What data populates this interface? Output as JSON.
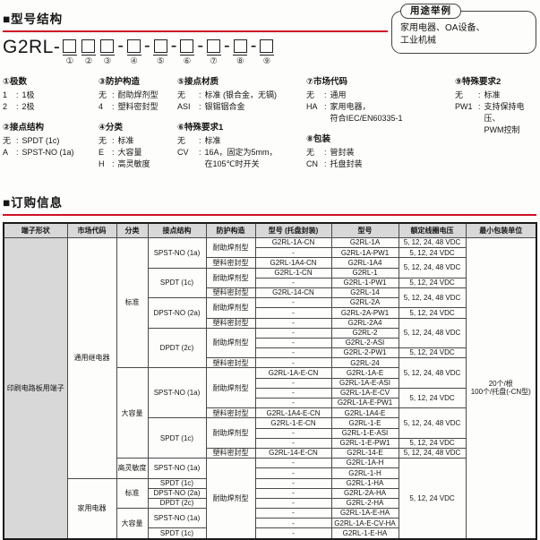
{
  "model_structure": {
    "heading": "■型号结构",
    "model_prefix": "G2RL-",
    "digit_separator": "-",
    "digits": [
      "①",
      "②",
      "③",
      "④",
      "⑤",
      "⑥",
      "⑦",
      "⑧",
      "⑨"
    ],
    "usage_box": {
      "title": "用途举例",
      "text": "家用电器、OA设备、\n工业机械"
    },
    "spec_columns": [
      [
        {
          "title": "①极数",
          "items": [
            [
              "1",
              "1极"
            ],
            [
              "2",
              "2极"
            ]
          ]
        },
        {
          "title": "②接点结构",
          "items": [
            [
              "无",
              "SPDT (1c)"
            ],
            [
              "A",
              "SPST-NO (1a)"
            ]
          ]
        }
      ],
      [
        {
          "title": "③防护构造",
          "items": [
            [
              "无",
              "耐助焊剂型"
            ],
            [
              "4",
              "塑料密封型"
            ]
          ]
        },
        {
          "title": "④分类",
          "items": [
            [
              "无",
              "标准"
            ],
            [
              "E",
              "大容量"
            ],
            [
              "H",
              "高灵敏度"
            ]
          ]
        }
      ],
      [
        {
          "title": "⑤接点材质",
          "items": [
            [
              "无",
              "标准 (银合金，无镉)"
            ],
            [
              "ASI",
              "银锡铟合金"
            ]
          ]
        },
        {
          "title": "⑥特殊要求1",
          "items": [
            [
              "无",
              "标准"
            ],
            [
              "CV",
              "16A，固定为5mm，\n在105℃时开关"
            ]
          ]
        }
      ],
      [
        {
          "title": "⑦市场代码",
          "items": [
            [
              "无",
              "通用"
            ],
            [
              "HA",
              "家用电器，\n符合IEC/EN60335-1"
            ]
          ]
        },
        {
          "title": "⑧包装",
          "items": [
            [
              "无",
              "管封装"
            ],
            [
              "CN",
              "托盘封装"
            ]
          ]
        }
      ],
      [
        {
          "title": "⑨特殊要求2",
          "items": [
            [
              "无",
              "标准"
            ],
            [
              "PW1",
              "支持保持电压、\nPWM控制"
            ]
          ]
        }
      ]
    ]
  },
  "ordering": {
    "heading": "■订购信息",
    "table": {
      "headers": [
        "端子形状",
        "市场代码",
        "分类",
        "接点结构",
        "防护构造",
        "型号 (托盘封装)",
        "型号",
        "额定线圈电压",
        "最小包装单位"
      ],
      "rows": [
        [
          {
            "t": "印刷电路板用端子",
            "rs": 30,
            "g": true
          },
          {
            "t": "通用继电器",
            "rs": 24
          },
          {
            "t": "标准",
            "rs": 13
          },
          {
            "t": "SPST-NO (1a)",
            "rs": 3
          },
          {
            "t": "耐助焊剂型",
            "rs": 2
          },
          {
            "t": "G2RL-1A-CN"
          },
          {
            "t": "G2RL-1A"
          },
          {
            "t": "5, 12, 24, 48 VDC"
          },
          {
            "t": "20个/根\n100个/托盘(-CN型)",
            "rs": 30
          }
        ],
        [
          {
            "t": "-"
          },
          {
            "t": "G2RL-1A-PW1"
          },
          {
            "t": "5, 12, 24 VDC"
          }
        ],
        [
          {
            "t": "塑料密封型"
          },
          {
            "t": "G2RL-1A4-CN"
          },
          {
            "t": "G2RL-1A4"
          },
          {
            "t": "5, 12, 24, 48 VDC",
            "rs": 2
          }
        ],
        [
          {
            "t": "SPDT (1c)",
            "rs": 3
          },
          {
            "t": "耐助焊剂型",
            "rs": 2
          },
          {
            "t": "G2RL-1-CN"
          },
          {
            "t": "G2RL-1"
          }
        ],
        [
          {
            "t": "-"
          },
          {
            "t": "G2RL-1-PW1"
          },
          {
            "t": "5, 12, 24 VDC"
          }
        ],
        [
          {
            "t": "塑料密封型"
          },
          {
            "t": "G2RL-14-CN"
          },
          {
            "t": "G2RL-14"
          },
          {
            "t": "5, 12, 24, 48 VDC",
            "rs": 2
          }
        ],
        [
          {
            "t": "DPST-NO (2a)",
            "rs": 3
          },
          {
            "t": "耐助焊剂型",
            "rs": 2
          },
          {
            "t": "-"
          },
          {
            "t": "G2RL-2A"
          }
        ],
        [
          {
            "t": "-"
          },
          {
            "t": "G2RL-2A-PW1"
          },
          {
            "t": "5, 12, 24 VDC"
          }
        ],
        [
          {
            "t": "塑料密封型"
          },
          {
            "t": "-"
          },
          {
            "t": "G2RL-2A4"
          },
          {
            "t": "5, 12, 24, 48 VDC",
            "rs": 3
          }
        ],
        [
          {
            "t": "DPDT (2c)",
            "rs": 4
          },
          {
            "t": "耐助焊剂型",
            "rs": 3
          },
          {
            "t": "-"
          },
          {
            "t": "G2RL-2"
          }
        ],
        [
          {
            "t": "-"
          },
          {
            "t": "G2RL-2-ASI"
          }
        ],
        [
          {
            "t": "-"
          },
          {
            "t": "G2RL-2-PW1"
          },
          {
            "t": "5, 12, 24 VDC"
          }
        ],
        [
          {
            "t": "塑料密封型"
          },
          {
            "t": "-"
          },
          {
            "t": "G2RL-24"
          },
          {
            "t": "5, 12, 24, 48 VDC",
            "rs": 3
          }
        ],
        [
          {
            "t": "大容量",
            "rs": 9
          },
          {
            "t": "SPST-NO (1a)",
            "rs": 5
          },
          {
            "t": "耐助焊剂型",
            "rs": 4
          },
          {
            "t": "G2RL-1A-E-CN"
          },
          {
            "t": "G2RL-1A-E"
          }
        ],
        [
          {
            "t": "-"
          },
          {
            "t": "G2RL-1A-E-ASI"
          }
        ],
        [
          {
            "t": "-"
          },
          {
            "t": "G2RL-1A-E-CV"
          },
          {
            "t": "5, 12, 24 VDC",
            "rs": 2
          }
        ],
        [
          {
            "t": "-"
          },
          {
            "t": "G2RL-1A-E-PW1"
          }
        ],
        [
          {
            "t": "塑料密封型"
          },
          {
            "t": "G2RL-1A4-E-CN"
          },
          {
            "t": "G2RL-1A4-E"
          },
          {
            "t": "5, 12, 24, 48 VDC",
            "rs": 3
          }
        ],
        [
          {
            "t": "SPDT (1c)",
            "rs": 4
          },
          {
            "t": "耐助焊剂型",
            "rs": 3
          },
          {
            "t": "G2RL-1-E-CN"
          },
          {
            "t": "G2RL-1-E"
          }
        ],
        [
          {
            "t": "-"
          },
          {
            "t": "G2RL-1-E-ASI"
          }
        ],
        [
          {
            "t": "-"
          },
          {
            "t": "G2RL-1-E-PW1"
          },
          {
            "t": "5, 12, 24 VDC"
          }
        ],
        [
          {
            "t": "塑料密封型"
          },
          {
            "t": "G2RL-14-E-CN"
          },
          {
            "t": "G2RL-14-E"
          },
          {
            "t": "5, 12, 24, 48 VDC"
          }
        ],
        [
          {
            "t": "高灵敏度",
            "rs": 2
          },
          {
            "t": "SPST-NO (1a)",
            "rs": 2
          },
          {
            "t": "耐助焊剂型",
            "rs": 8
          },
          {
            "t": "-"
          },
          {
            "t": "G2RL-1A-H"
          },
          {
            "t": "5, 12, 24 VDC",
            "rs": 8
          }
        ],
        [
          {
            "t": "-"
          },
          {
            "t": "G2RL-1-H"
          }
        ],
        [
          {
            "t": "家用电器",
            "rs": 6
          },
          {
            "t": "标准",
            "rs": 3
          },
          {
            "t": "SPDT (1c)"
          },
          {
            "t": "-"
          },
          {
            "t": "G2RL-1-HA"
          }
        ],
        [
          {
            "t": "DPST-NO (2a)"
          },
          {
            "t": "-"
          },
          {
            "t": "G2RL-2A-HA"
          }
        ],
        [
          {
            "t": "DPDT (2c)"
          },
          {
            "t": "-"
          },
          {
            "t": "G2RL-2-HA"
          }
        ],
        [
          {
            "t": "大容量",
            "rs": 3
          },
          {
            "t": "SPST-NO (1a)",
            "rs": 2
          },
          {
            "t": "-"
          },
          {
            "t": "G2RL-1A-E-HA"
          }
        ],
        [
          {
            "t": "-"
          },
          {
            "t": "G2RL-1A-E-CV-HA"
          }
        ],
        [
          {
            "t": "SPDT (1c)"
          },
          {
            "t": "-"
          },
          {
            "t": "G2RL-1-E-HA"
          }
        ]
      ]
    }
  }
}
